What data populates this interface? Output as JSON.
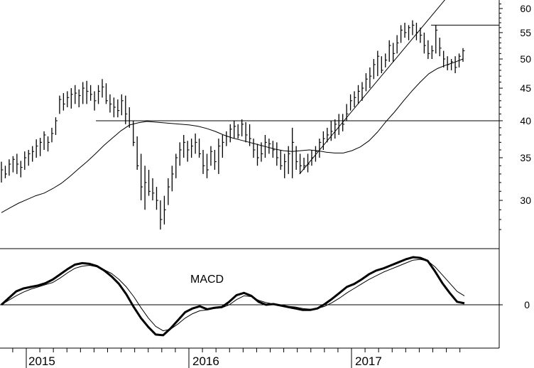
{
  "chart_data": [
    {
      "type": "ohlc",
      "panel": "price",
      "title": "",
      "y_scale": "log",
      "ylim": [
        26,
        62
      ],
      "y_ticks": [
        30,
        35,
        40,
        45,
        50,
        55,
        60
      ],
      "y_tick_labels": [
        "30",
        "35",
        "40",
        "45",
        "50",
        "55",
        "60"
      ],
      "x_labels": [
        "2015",
        "2016",
        "2017"
      ],
      "series": [
        {
          "name": "",
          "values": [
            [
              32.0,
              34.5,
              33.5
            ],
            [
              32.5,
              34.0,
              33.0
            ],
            [
              32.8,
              34.8,
              34.2
            ],
            [
              33.2,
              35.2,
              34.8
            ],
            [
              33.0,
              35.5,
              34.2
            ],
            [
              32.6,
              34.6,
              33.8
            ],
            [
              33.5,
              35.8,
              35.0
            ],
            [
              34.0,
              36.0,
              35.5
            ],
            [
              34.5,
              36.5,
              35.8
            ],
            [
              35.0,
              37.4,
              36.5
            ],
            [
              35.2,
              37.6,
              37.0
            ],
            [
              36.0,
              38.5,
              38.0
            ],
            [
              35.8,
              37.8,
              37.0
            ],
            [
              37.0,
              39.0,
              38.2
            ],
            [
              38.0,
              40.5,
              40.0
            ],
            [
              41.0,
              43.8,
              43.2
            ],
            [
              41.5,
              44.2,
              42.5
            ],
            [
              42.0,
              44.5,
              43.5
            ],
            [
              41.8,
              45.0,
              44.0
            ],
            [
              42.5,
              45.5,
              44.2
            ],
            [
              42.0,
              44.8,
              43.8
            ],
            [
              42.5,
              46.0,
              45.0
            ],
            [
              42.5,
              46.2,
              44.5
            ],
            [
              43.0,
              45.5,
              44.0
            ],
            [
              41.5,
              44.5,
              43.0
            ],
            [
              42.5,
              45.5,
              44.5
            ],
            [
              43.5,
              46.5,
              45.2
            ],
            [
              42.5,
              45.8,
              43.0
            ],
            [
              41.2,
              44.0,
              42.5
            ],
            [
              40.5,
              43.5,
              42.0
            ],
            [
              40.5,
              43.2,
              41.5
            ],
            [
              40.8,
              44.0,
              43.0
            ],
            [
              39.5,
              43.8,
              41.0
            ],
            [
              39.0,
              42.0,
              40.0
            ],
            [
              36.5,
              40.0,
              37.0
            ],
            [
              33.5,
              37.8,
              34.0
            ],
            [
              30.0,
              35.5,
              31.5
            ],
            [
              29.0,
              34.0,
              32.0
            ],
            [
              30.5,
              33.5,
              31.0
            ],
            [
              30.0,
              32.5,
              30.8
            ],
            [
              29.0,
              31.5,
              30.0
            ],
            [
              27.0,
              30.0,
              28.0
            ],
            [
              27.5,
              30.5,
              29.0
            ],
            [
              29.5,
              32.5,
              31.5
            ],
            [
              31.0,
              34.0,
              33.0
            ],
            [
              32.5,
              35.5,
              35.0
            ],
            [
              34.0,
              37.0,
              36.0
            ],
            [
              35.0,
              38.0,
              37.0
            ],
            [
              34.5,
              37.2,
              36.0
            ],
            [
              35.0,
              37.5,
              36.5
            ],
            [
              35.5,
              38.2,
              37.0
            ],
            [
              35.0,
              37.5,
              35.5
            ],
            [
              33.0,
              36.0,
              34.0
            ],
            [
              32.5,
              35.5,
              33.5
            ],
            [
              34.0,
              36.5,
              35.8
            ],
            [
              33.5,
              36.0,
              34.5
            ],
            [
              33.0,
              37.5,
              36.5
            ],
            [
              35.0,
              38.0,
              37.0
            ],
            [
              36.5,
              38.5,
              37.8
            ],
            [
              37.0,
              39.5,
              38.8
            ],
            [
              37.5,
              40.0,
              39.2
            ],
            [
              37.5,
              39.5,
              38.0
            ],
            [
              37.8,
              40.2,
              39.5
            ],
            [
              37.0,
              39.8,
              38.0
            ],
            [
              36.5,
              39.5,
              37.5
            ],
            [
              35.0,
              37.5,
              36.0
            ],
            [
              34.0,
              36.8,
              35.0
            ],
            [
              34.5,
              37.0,
              35.5
            ],
            [
              35.0,
              38.0,
              37.0
            ],
            [
              35.5,
              37.5,
              36.8
            ],
            [
              35.0,
              37.2,
              36.0
            ],
            [
              34.0,
              37.0,
              35.0
            ],
            [
              33.5,
              36.0,
              34.0
            ],
            [
              32.5,
              35.5,
              34.5
            ],
            [
              33.0,
              36.5,
              35.5
            ],
            [
              32.5,
              39.0,
              37.0
            ],
            [
              33.5,
              36.5,
              34.5
            ],
            [
              33.0,
              35.5,
              34.0
            ],
            [
              33.5,
              35.0,
              34.0
            ],
            [
              33.2,
              35.5,
              34.2
            ],
            [
              34.0,
              36.0,
              35.0
            ],
            [
              34.5,
              36.5,
              35.8
            ],
            [
              35.0,
              37.5,
              37.0
            ],
            [
              36.0,
              38.5,
              37.5
            ],
            [
              37.0,
              39.0,
              38.0
            ],
            [
              37.2,
              40.0,
              38.5
            ],
            [
              37.5,
              40.2,
              39.5
            ],
            [
              38.0,
              41.0,
              40.0
            ],
            [
              38.5,
              41.0,
              39.5
            ],
            [
              40.0,
              42.5,
              41.0
            ],
            [
              41.5,
              44.0,
              43.0
            ],
            [
              42.0,
              44.5,
              43.5
            ],
            [
              42.5,
              45.5,
              44.5
            ],
            [
              43.0,
              46.0,
              45.0
            ],
            [
              44.5,
              47.5,
              46.5
            ],
            [
              45.0,
              48.5,
              47.0
            ],
            [
              46.5,
              50.0,
              49.0
            ],
            [
              47.0,
              51.5,
              50.5
            ],
            [
              47.5,
              50.5,
              48.0
            ],
            [
              48.5,
              51.0,
              49.8
            ],
            [
              49.5,
              53.5,
              52.5
            ],
            [
              49.5,
              53.0,
              51.0
            ],
            [
              51.0,
              54.5,
              53.0
            ],
            [
              53.0,
              56.5,
              55.5
            ],
            [
              54.0,
              57.0,
              55.0
            ],
            [
              53.5,
              56.5,
              56.0
            ],
            [
              54.5,
              57.5,
              56.5
            ],
            [
              53.5,
              57.0,
              55.0
            ],
            [
              53.0,
              56.0,
              54.5
            ],
            [
              51.0,
              55.0,
              52.5
            ],
            [
              50.0,
              53.5,
              51.0
            ],
            [
              50.0,
              52.5,
              51.5
            ],
            [
              51.0,
              56.5,
              55.5
            ],
            [
              50.5,
              54.0,
              52.0
            ],
            [
              48.5,
              51.5,
              50.0
            ],
            [
              48.0,
              50.5,
              49.0
            ],
            [
              48.0,
              50.0,
              49.5
            ],
            [
              47.5,
              50.5,
              48.5
            ],
            [
              48.5,
              51.0,
              50.5
            ],
            [
              49.5,
              52.0,
              51.5
            ]
          ]
        },
        {
          "name": "",
          "kind": "moving-average",
          "values": [
            28.7,
            29.2,
            29.7,
            30.1,
            30.5,
            30.8,
            31.3,
            31.9,
            32.7,
            33.6,
            34.5,
            35.5,
            36.6,
            37.6,
            38.6,
            39.4,
            39.7,
            39.9,
            39.8,
            39.7,
            39.6,
            39.5,
            39.4,
            39.2,
            38.9,
            38.5,
            38.0,
            37.6,
            37.3,
            37.0,
            36.7,
            36.4,
            36.1,
            35.9,
            35.8,
            35.9,
            36.0,
            35.9,
            35.7,
            35.6,
            35.6,
            35.9,
            36.4,
            37.2,
            38.4,
            39.9,
            41.3,
            42.9,
            44.5,
            46.0,
            47.4,
            48.3,
            48.9,
            49.4,
            50.0
          ],
          "x_step": 2.2
        }
      ],
      "annotations": [
        {
          "kind": "horizontal-line",
          "value": 40.0,
          "from_bar": 55,
          "to_bar": 320
        },
        {
          "kind": "horizontal-line",
          "value": 56.5,
          "from_bar": 250,
          "to_bar": 320
        },
        {
          "kind": "trend-line",
          "from": [
            185,
            33.0
          ],
          "to": [
            285,
            62.0
          ]
        }
      ]
    },
    {
      "type": "line",
      "panel": "indicator",
      "title": "MACD",
      "y_ticks": [
        0
      ],
      "y_tick_labels": [
        "0"
      ],
      "series": [
        {
          "name": "",
          "role": "macd",
          "width": 3,
          "values": [
            0.0,
            0.9,
            1.8,
            2.2,
            2.4,
            2.6,
            2.9,
            3.4,
            4.1,
            4.8,
            5.4,
            5.6,
            5.5,
            5.2,
            4.6,
            3.8,
            2.8,
            1.4,
            -0.3,
            -1.8,
            -3.0,
            -4.0,
            -4.1,
            -3.2,
            -2.1,
            -1.0,
            -0.5,
            -0.2,
            -0.6,
            -0.4,
            -0.3,
            0.4,
            1.3,
            1.6,
            1.2,
            0.4,
            0.0,
            0.1,
            -0.1,
            -0.3,
            -0.5,
            -0.7,
            -0.7,
            -0.5,
            0.1,
            0.8,
            1.6,
            2.4,
            2.8,
            3.4,
            4.1,
            4.6,
            4.9,
            5.3,
            5.7,
            6.1,
            6.4,
            6.3,
            5.9,
            4.5,
            2.9,
            1.6,
            0.4,
            0.2
          ]
        },
        {
          "name": "",
          "role": "signal",
          "width": 1,
          "values": [
            0.0,
            0.6,
            1.2,
            1.7,
            2.1,
            2.4,
            2.7,
            3.0,
            3.6,
            4.3,
            4.9,
            5.2,
            5.3,
            5.1,
            4.7,
            4.2,
            3.4,
            2.4,
            1.1,
            -0.4,
            -1.8,
            -2.9,
            -3.5,
            -3.3,
            -2.6,
            -1.8,
            -1.2,
            -0.8,
            -0.7,
            -0.5,
            -0.4,
            0.0,
            0.7,
            1.2,
            1.1,
            0.6,
            0.3,
            0.1,
            0.0,
            -0.2,
            -0.3,
            -0.5,
            -0.6,
            -0.5,
            -0.2,
            0.3,
            0.9,
            1.6,
            2.2,
            2.8,
            3.4,
            3.9,
            4.4,
            4.8,
            5.2,
            5.6,
            6.0,
            6.1,
            5.9,
            5.1,
            4.0,
            2.9,
            1.8,
            1.2
          ]
        },
        {
          "name": "",
          "role": "zero-line",
          "values": [
            0
          ]
        }
      ],
      "ylim": [
        -5.5,
        7.5
      ]
    }
  ]
}
